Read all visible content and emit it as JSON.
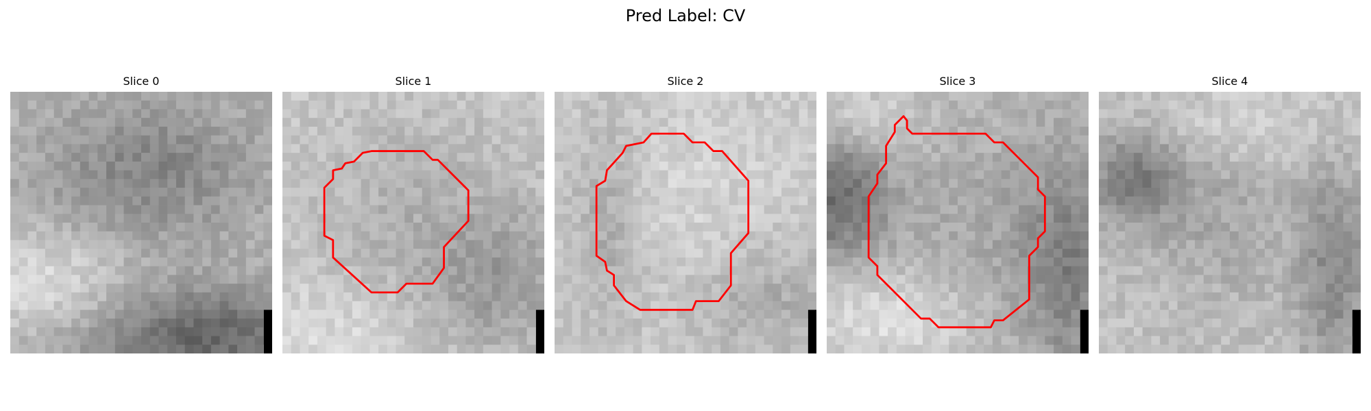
{
  "figure": {
    "title": "Pred Label: CV"
  },
  "slices": [
    {
      "label": "Slice 0",
      "has_contour": false
    },
    {
      "label": "Slice 1",
      "has_contour": true
    },
    {
      "label": "Slice 2",
      "has_contour": true
    },
    {
      "label": "Slice 3",
      "has_contour": true
    },
    {
      "label": "Slice 4",
      "has_contour": false
    }
  ],
  "colors": {
    "contour": "#ff0000",
    "marker": "#000000",
    "background": "#ffffff"
  }
}
